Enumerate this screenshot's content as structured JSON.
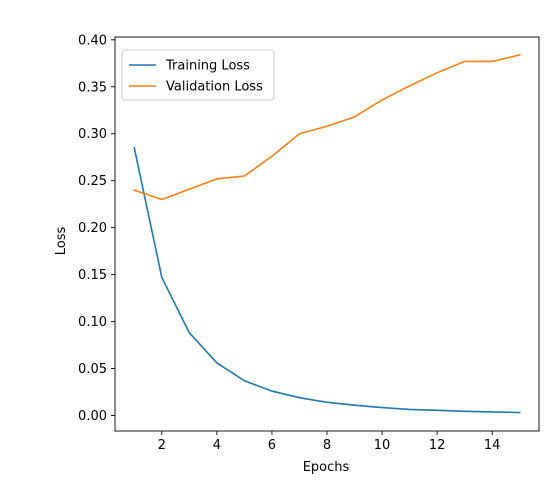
{
  "chart_data": {
    "type": "line",
    "title": "",
    "xlabel": "Epochs",
    "ylabel": "Loss",
    "x": [
      1,
      2,
      3,
      4,
      5,
      6,
      7,
      8,
      9,
      10,
      11,
      12,
      13,
      14,
      15
    ],
    "xlim": [
      0.3,
      15.7
    ],
    "ylim": [
      -0.0165,
      0.403
    ],
    "xticks": [
      2,
      4,
      6,
      8,
      10,
      12,
      14
    ],
    "xtick_labels": [
      "2",
      "4",
      "6",
      "8",
      "10",
      "12",
      "14"
    ],
    "yticks": [
      0.0,
      0.05,
      0.1,
      0.15,
      0.2,
      0.25,
      0.3,
      0.35,
      0.4
    ],
    "ytick_labels": [
      "0.00",
      "0.05",
      "0.10",
      "0.15",
      "0.20",
      "0.25",
      "0.30",
      "0.35",
      "0.40"
    ],
    "grid": false,
    "legend_position": "top-left",
    "series": [
      {
        "name": "Training Loss",
        "color": "#1f77b4",
        "values": [
          0.285,
          0.147,
          0.088,
          0.056,
          0.037,
          0.026,
          0.019,
          0.014,
          0.011,
          0.0085,
          0.0065,
          0.0055,
          0.0045,
          0.0038,
          0.0032
        ]
      },
      {
        "name": "Validation Loss",
        "color": "#ff7f0e",
        "values": [
          0.24,
          0.23,
          0.241,
          0.252,
          0.255,
          0.276,
          0.3,
          0.308,
          0.318,
          0.336,
          0.351,
          0.365,
          0.377,
          0.377,
          0.384
        ]
      }
    ]
  }
}
